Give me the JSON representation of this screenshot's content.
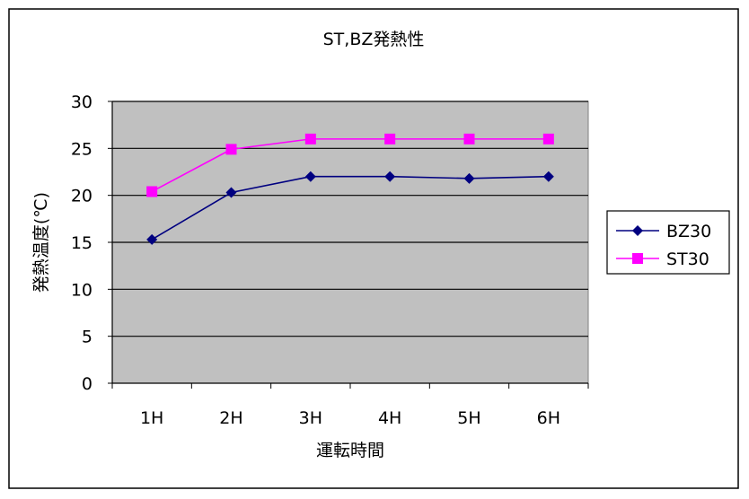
{
  "chart_data": {
    "type": "line",
    "title": "ST,BZ発熱性",
    "xlabel": "運転時間",
    "ylabel": "発熱温度(℃)",
    "categories": [
      "1H",
      "2H",
      "3H",
      "4H",
      "5H",
      "6H"
    ],
    "yticks": [
      "0",
      "5",
      "10",
      "15",
      "20",
      "25",
      "30"
    ],
    "ylim": [
      0,
      30
    ],
    "grid": true,
    "legend_position": "right",
    "series": [
      {
        "name": "BZ30",
        "color": "#000080",
        "marker": "diamond",
        "values": [
          15.3,
          20.3,
          22.0,
          22.0,
          21.8,
          22.0
        ]
      },
      {
        "name": "ST30",
        "color": "#ff00ff",
        "marker": "square",
        "values": [
          20.4,
          24.9,
          26.0,
          26.0,
          26.0,
          26.0
        ]
      }
    ],
    "plot_background": "#c0c0c0"
  }
}
